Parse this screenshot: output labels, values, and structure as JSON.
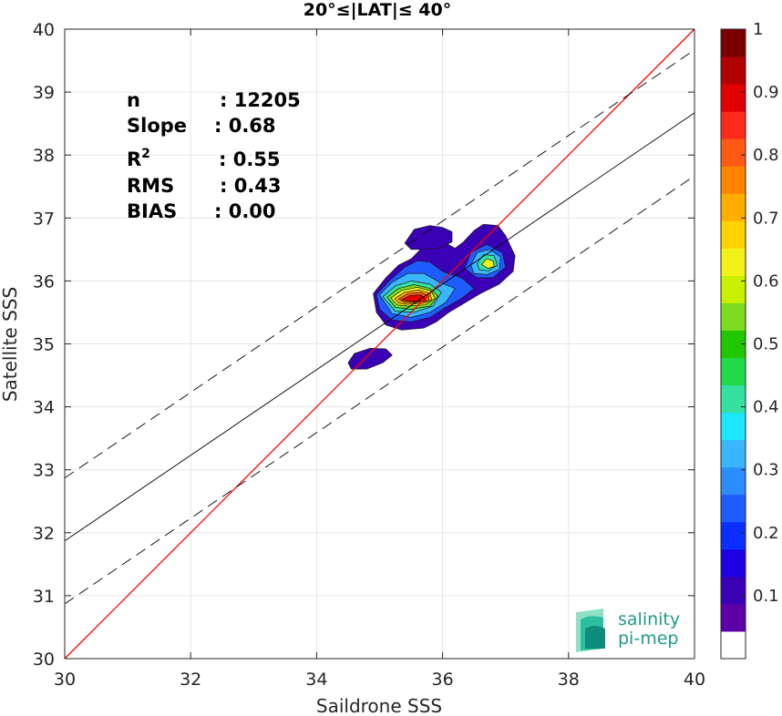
{
  "chart_data": {
    "type": "scatter",
    "title": "20°≤|LAT|≤ 40°",
    "xlabel": "Saildrone SSS",
    "ylabel": "Satellite SSS",
    "xlim": [
      30,
      40
    ],
    "ylim": [
      30,
      40
    ],
    "xticks": [
      "30",
      "32",
      "34",
      "36",
      "38",
      "40"
    ],
    "yticks": [
      "30",
      "31",
      "32",
      "33",
      "34",
      "35",
      "36",
      "37",
      "38",
      "39",
      "40"
    ],
    "grid": true,
    "stats": [
      {
        "label": "n",
        "value": ": 12205"
      },
      {
        "label": "Slope",
        "value": ": 0.68"
      },
      {
        "label": "R",
        "sup": "2",
        "value": ": 0.55"
      },
      {
        "label": "RMS",
        "value": ": 0.43"
      },
      {
        "label": "BIAS",
        "value": ": 0.00"
      }
    ],
    "lines": {
      "identity": {
        "x": [
          30,
          40
        ],
        "y": [
          30,
          40
        ],
        "color": "#ff0000",
        "style": "solid"
      },
      "fit": {
        "x": [
          30,
          40
        ],
        "y": [
          31.87,
          38.67
        ],
        "color": "#000000",
        "style": "solid"
      },
      "fit_upper": {
        "x": [
          30,
          40
        ],
        "y": [
          32.87,
          39.67
        ],
        "color": "#000000",
        "style": "dashed"
      },
      "fit_lower": {
        "x": [
          30,
          40
        ],
        "y": [
          30.87,
          37.67
        ],
        "color": "#000000",
        "style": "dashed"
      }
    },
    "density_contours": [
      {
        "level": 0.05,
        "color": "#3a00b5",
        "polygon": [
          [
            34.9,
            35.8
          ],
          [
            35.1,
            36.05
          ],
          [
            35.3,
            36.25
          ],
          [
            35.5,
            36.35
          ],
          [
            35.65,
            36.5
          ],
          [
            35.85,
            36.6
          ],
          [
            36.05,
            36.6
          ],
          [
            36.2,
            36.52
          ],
          [
            36.33,
            36.62
          ],
          [
            36.5,
            36.8
          ],
          [
            36.65,
            36.9
          ],
          [
            36.88,
            36.88
          ],
          [
            37.0,
            36.72
          ],
          [
            37.15,
            36.4
          ],
          [
            37.12,
            36.15
          ],
          [
            36.9,
            35.95
          ],
          [
            36.6,
            35.8
          ],
          [
            36.35,
            35.65
          ],
          [
            36.1,
            35.5
          ],
          [
            35.9,
            35.35
          ],
          [
            35.7,
            35.25
          ],
          [
            35.35,
            35.22
          ],
          [
            35.1,
            35.3
          ],
          [
            34.95,
            35.5
          ]
        ]
      },
      {
        "level": 0.05,
        "color": "#3a00b5",
        "polygon": [
          [
            35.4,
            36.6
          ],
          [
            35.55,
            36.82
          ],
          [
            35.8,
            36.88
          ],
          [
            36.0,
            36.85
          ],
          [
            36.15,
            36.78
          ],
          [
            36.15,
            36.62
          ],
          [
            35.95,
            36.52
          ],
          [
            35.7,
            36.5
          ],
          [
            35.5,
            36.5
          ]
        ]
      },
      {
        "level": 0.05,
        "color": "#3a00b5",
        "polygon": [
          [
            34.5,
            34.7
          ],
          [
            34.6,
            34.85
          ],
          [
            34.85,
            34.93
          ],
          [
            35.1,
            34.92
          ],
          [
            35.2,
            34.82
          ],
          [
            35.05,
            34.7
          ],
          [
            34.8,
            34.6
          ],
          [
            34.55,
            34.6
          ]
        ]
      },
      {
        "level": 0.2,
        "color": "#1e5cff",
        "polygon": [
          [
            34.95,
            35.78
          ],
          [
            35.15,
            36.0
          ],
          [
            35.4,
            36.22
          ],
          [
            35.6,
            36.32
          ],
          [
            35.8,
            36.3
          ],
          [
            36.0,
            36.15
          ],
          [
            36.3,
            36.05
          ],
          [
            36.5,
            35.88
          ],
          [
            36.3,
            35.72
          ],
          [
            36.05,
            35.58
          ],
          [
            35.8,
            35.42
          ],
          [
            35.5,
            35.35
          ],
          [
            35.2,
            35.38
          ],
          [
            35.0,
            35.55
          ]
        ]
      },
      {
        "level": 0.2,
        "color": "#1e5cff",
        "polygon": [
          [
            36.35,
            36.2
          ],
          [
            36.45,
            36.45
          ],
          [
            36.7,
            36.58
          ],
          [
            36.95,
            36.45
          ],
          [
            37.0,
            36.22
          ],
          [
            36.8,
            36.05
          ],
          [
            36.55,
            36.05
          ]
        ]
      },
      {
        "level": 0.3,
        "color": "#39b6ff",
        "polygon": [
          [
            35.0,
            35.78
          ],
          [
            35.2,
            35.98
          ],
          [
            35.45,
            36.12
          ],
          [
            35.7,
            36.12
          ],
          [
            35.95,
            35.98
          ],
          [
            36.2,
            35.88
          ],
          [
            36.05,
            35.66
          ],
          [
            35.8,
            35.5
          ],
          [
            35.5,
            35.42
          ],
          [
            35.2,
            35.48
          ]
        ]
      },
      {
        "level": 0.3,
        "color": "#39b6ff",
        "polygon": [
          [
            36.45,
            36.25
          ],
          [
            36.55,
            36.45
          ],
          [
            36.75,
            36.5
          ],
          [
            36.92,
            36.38
          ],
          [
            36.9,
            36.18
          ],
          [
            36.7,
            36.1
          ],
          [
            36.5,
            36.12
          ]
        ]
      },
      {
        "level": 0.45,
        "color": "#35e0a0",
        "polygon": [
          [
            35.05,
            35.75
          ],
          [
            35.25,
            35.92
          ],
          [
            35.5,
            36.0
          ],
          [
            35.8,
            35.95
          ],
          [
            35.98,
            35.82
          ],
          [
            35.85,
            35.6
          ],
          [
            35.55,
            35.5
          ],
          [
            35.25,
            35.52
          ]
        ]
      },
      {
        "level": 0.45,
        "color": "#35e0a0",
        "polygon": [
          [
            36.55,
            36.28
          ],
          [
            36.65,
            36.42
          ],
          [
            36.82,
            36.4
          ],
          [
            36.87,
            36.25
          ],
          [
            36.72,
            36.16
          ],
          [
            36.58,
            36.18
          ]
        ]
      },
      {
        "level": 0.55,
        "color": "#7ddc1f",
        "polygon": [
          [
            35.12,
            35.74
          ],
          [
            35.3,
            35.88
          ],
          [
            35.55,
            35.94
          ],
          [
            35.8,
            35.88
          ],
          [
            35.93,
            35.76
          ],
          [
            35.8,
            35.6
          ],
          [
            35.5,
            35.55
          ],
          [
            35.25,
            35.58
          ]
        ]
      },
      {
        "level": 0.6,
        "color": "#f2f21a",
        "polygon": [
          [
            35.18,
            35.73
          ],
          [
            35.35,
            35.85
          ],
          [
            35.6,
            35.9
          ],
          [
            35.82,
            35.84
          ],
          [
            35.88,
            35.72
          ],
          [
            35.72,
            35.62
          ],
          [
            35.45,
            35.6
          ],
          [
            35.28,
            35.62
          ]
        ]
      },
      {
        "level": 0.6,
        "color": "#f2f21a",
        "polygon": [
          [
            36.62,
            36.26
          ],
          [
            36.7,
            36.35
          ],
          [
            36.8,
            36.32
          ],
          [
            36.82,
            36.23
          ],
          [
            36.72,
            36.2
          ]
        ]
      },
      {
        "level": 0.7,
        "color": "#ffae00",
        "polygon": [
          [
            35.24,
            35.72
          ],
          [
            35.4,
            35.82
          ],
          [
            35.62,
            35.86
          ],
          [
            35.8,
            35.8
          ],
          [
            35.83,
            35.7
          ],
          [
            35.68,
            35.64
          ],
          [
            35.42,
            35.63
          ],
          [
            35.3,
            35.65
          ]
        ]
      },
      {
        "level": 0.8,
        "color": "#ff5a14",
        "polygon": [
          [
            35.3,
            35.71
          ],
          [
            35.45,
            35.8
          ],
          [
            35.65,
            35.82
          ],
          [
            35.78,
            35.76
          ],
          [
            35.78,
            35.68
          ],
          [
            35.6,
            35.66
          ],
          [
            35.4,
            35.66
          ]
        ]
      },
      {
        "level": 0.9,
        "color": "#e00000",
        "polygon": [
          [
            35.35,
            35.7
          ],
          [
            35.48,
            35.77
          ],
          [
            35.65,
            35.78
          ],
          [
            35.74,
            35.72
          ],
          [
            35.7,
            35.67
          ],
          [
            35.5,
            35.67
          ]
        ]
      }
    ],
    "colorbar": {
      "ticks": [
        "0.1",
        "0.2",
        "0.3",
        "0.4",
        "0.5",
        "0.6",
        "0.7",
        "0.8",
        "0.9",
        "1"
      ],
      "range": [
        0,
        1
      ],
      "colors": [
        "#ffffff",
        "#5d00a8",
        "#3a00b5",
        "#1d00e3",
        "#0a2eff",
        "#1e5cff",
        "#2b8cff",
        "#39b6ff",
        "#1fe6ff",
        "#35e0a0",
        "#22d94a",
        "#21c800",
        "#7ddc1f",
        "#c8f000",
        "#f2f21a",
        "#ffd200",
        "#ffae00",
        "#ff8400",
        "#ff5a14",
        "#ff2a1a",
        "#e00000",
        "#b00000",
        "#7a0000"
      ]
    }
  },
  "logo": {
    "line1": "salinity",
    "line2": "pi-mep",
    "colors": [
      "#0e8c7c",
      "#2cbf9f",
      "#8fe0c5"
    ]
  }
}
